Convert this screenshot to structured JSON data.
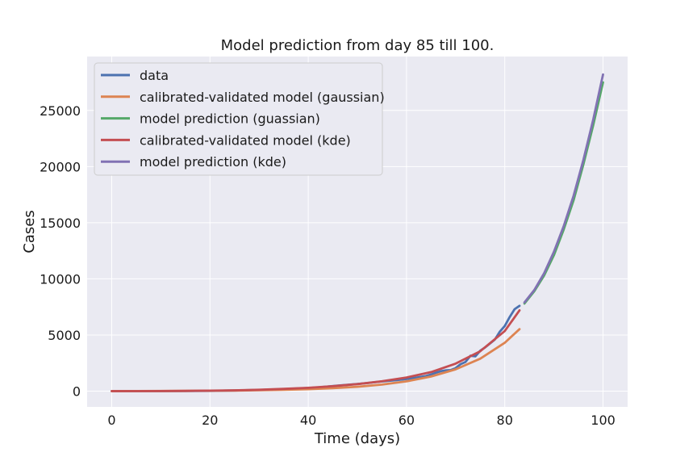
{
  "chart_data": {
    "type": "line",
    "title": "Model prediction from day 85 till 100.",
    "xlabel": "Time (days)",
    "ylabel": "Cases",
    "xlim": [
      -5,
      105
    ],
    "ylim": [
      -1400,
      29800
    ],
    "xticks": [
      0,
      20,
      40,
      60,
      80,
      100
    ],
    "yticks": [
      0,
      5000,
      10000,
      15000,
      20000,
      25000
    ],
    "grid": true,
    "legend_position": "top-left",
    "series": [
      {
        "name": "data",
        "color": "#4c72b0",
        "x": [
          0,
          10,
          20,
          25,
          30,
          35,
          38,
          40,
          42,
          44,
          46,
          48,
          50,
          52,
          54,
          56,
          58,
          60,
          62,
          64,
          65,
          66,
          67,
          68,
          69,
          70,
          71,
          72,
          73,
          74,
          75,
          76,
          77,
          78,
          79,
          80,
          81,
          82,
          83
        ],
        "y": [
          0,
          5,
          20,
          60,
          110,
          180,
          240,
          280,
          330,
          410,
          490,
          560,
          640,
          720,
          820,
          900,
          980,
          1080,
          1200,
          1350,
          1480,
          1650,
          1780,
          1850,
          1880,
          2050,
          2400,
          2600,
          3150,
          3100,
          3600,
          3900,
          4250,
          4600,
          5300,
          5800,
          6600,
          7300,
          7600
        ]
      },
      {
        "name": "calibrated-validated model (gaussian)",
        "color": "#dd8452",
        "x": [
          0,
          5,
          10,
          15,
          20,
          25,
          30,
          35,
          40,
          45,
          50,
          55,
          60,
          65,
          70,
          75,
          80,
          83
        ],
        "y": [
          5,
          10,
          16,
          24,
          35,
          52,
          80,
          118,
          176,
          263,
          392,
          585,
          872,
          1300,
          1940,
          2890,
          4310,
          5520
        ]
      },
      {
        "name": "model prediction (guassian)",
        "color": "#55a868",
        "x": [
          84,
          86,
          88,
          90,
          92,
          94,
          96,
          98,
          100
        ],
        "y": [
          7800,
          8900,
          10300,
          12100,
          14400,
          17000,
          20200,
          23700,
          27500
        ]
      },
      {
        "name": "calibrated-validated model (kde)",
        "color": "#c44e52",
        "x": [
          0,
          5,
          10,
          15,
          20,
          25,
          30,
          35,
          40,
          45,
          50,
          55,
          60,
          65,
          70,
          75,
          80,
          83
        ],
        "y": [
          0,
          3,
          10,
          22,
          42,
          75,
          125,
          200,
          300,
          440,
          630,
          880,
          1220,
          1700,
          2450,
          3550,
          5350,
          7200
        ]
      },
      {
        "name": "model prediction (kde)",
        "color": "#8172b3",
        "x": [
          84,
          86,
          88,
          90,
          92,
          94,
          96,
          98,
          100
        ],
        "y": [
          7900,
          9000,
          10500,
          12400,
          14700,
          17400,
          20600,
          24200,
          28200
        ]
      }
    ]
  }
}
